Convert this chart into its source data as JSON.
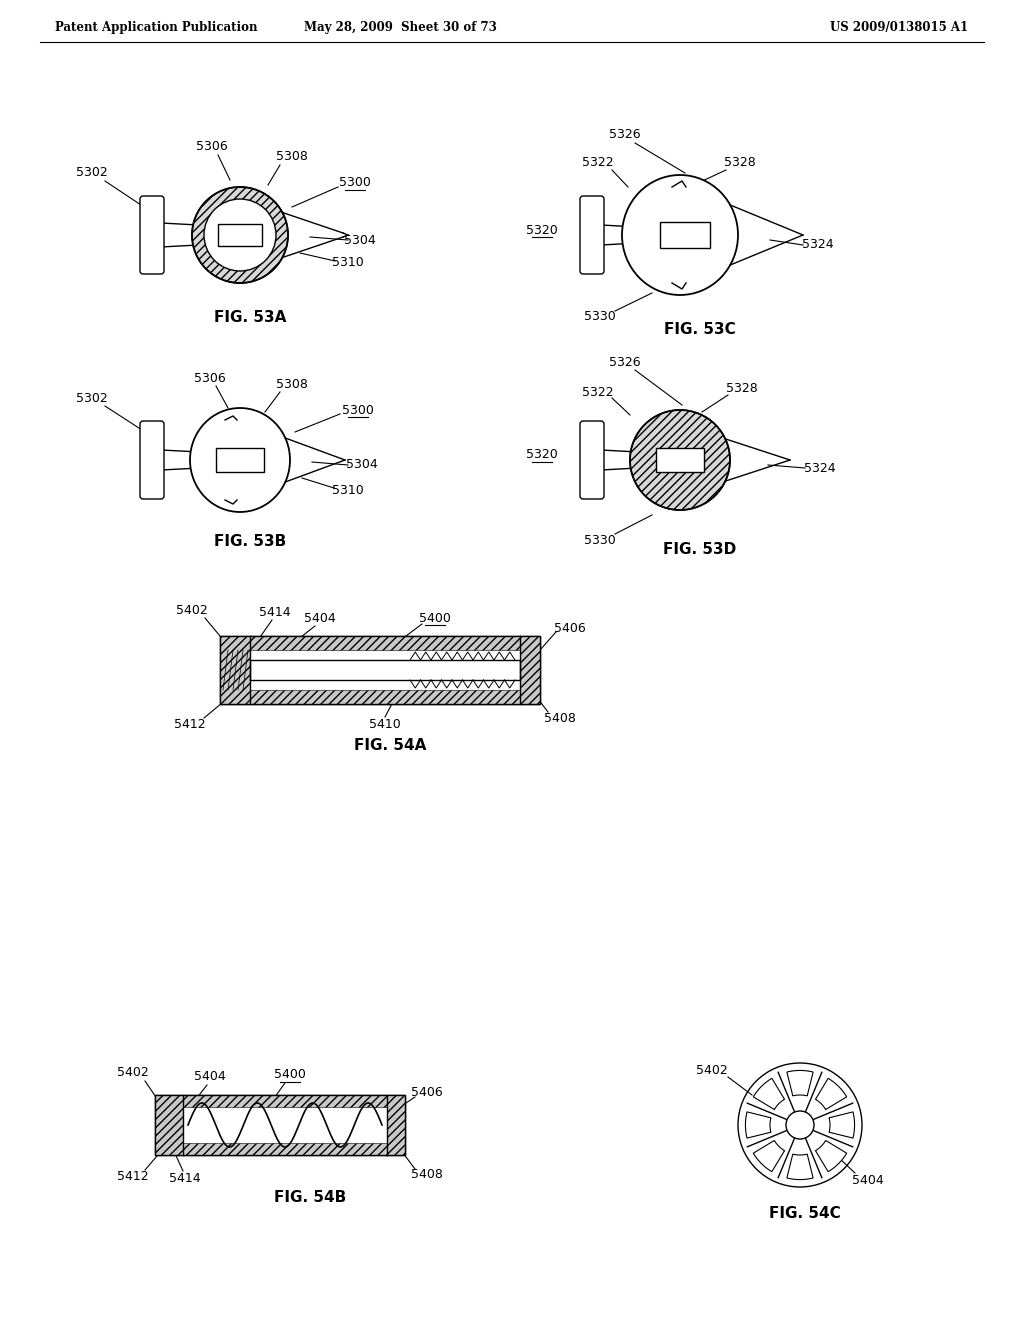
{
  "bg_color": "#ffffff",
  "header_left": "Patent Application Publication",
  "header_mid": "May 28, 2009  Sheet 30 of 73",
  "header_right": "US 2009/0138015 A1",
  "lw": 1.0
}
